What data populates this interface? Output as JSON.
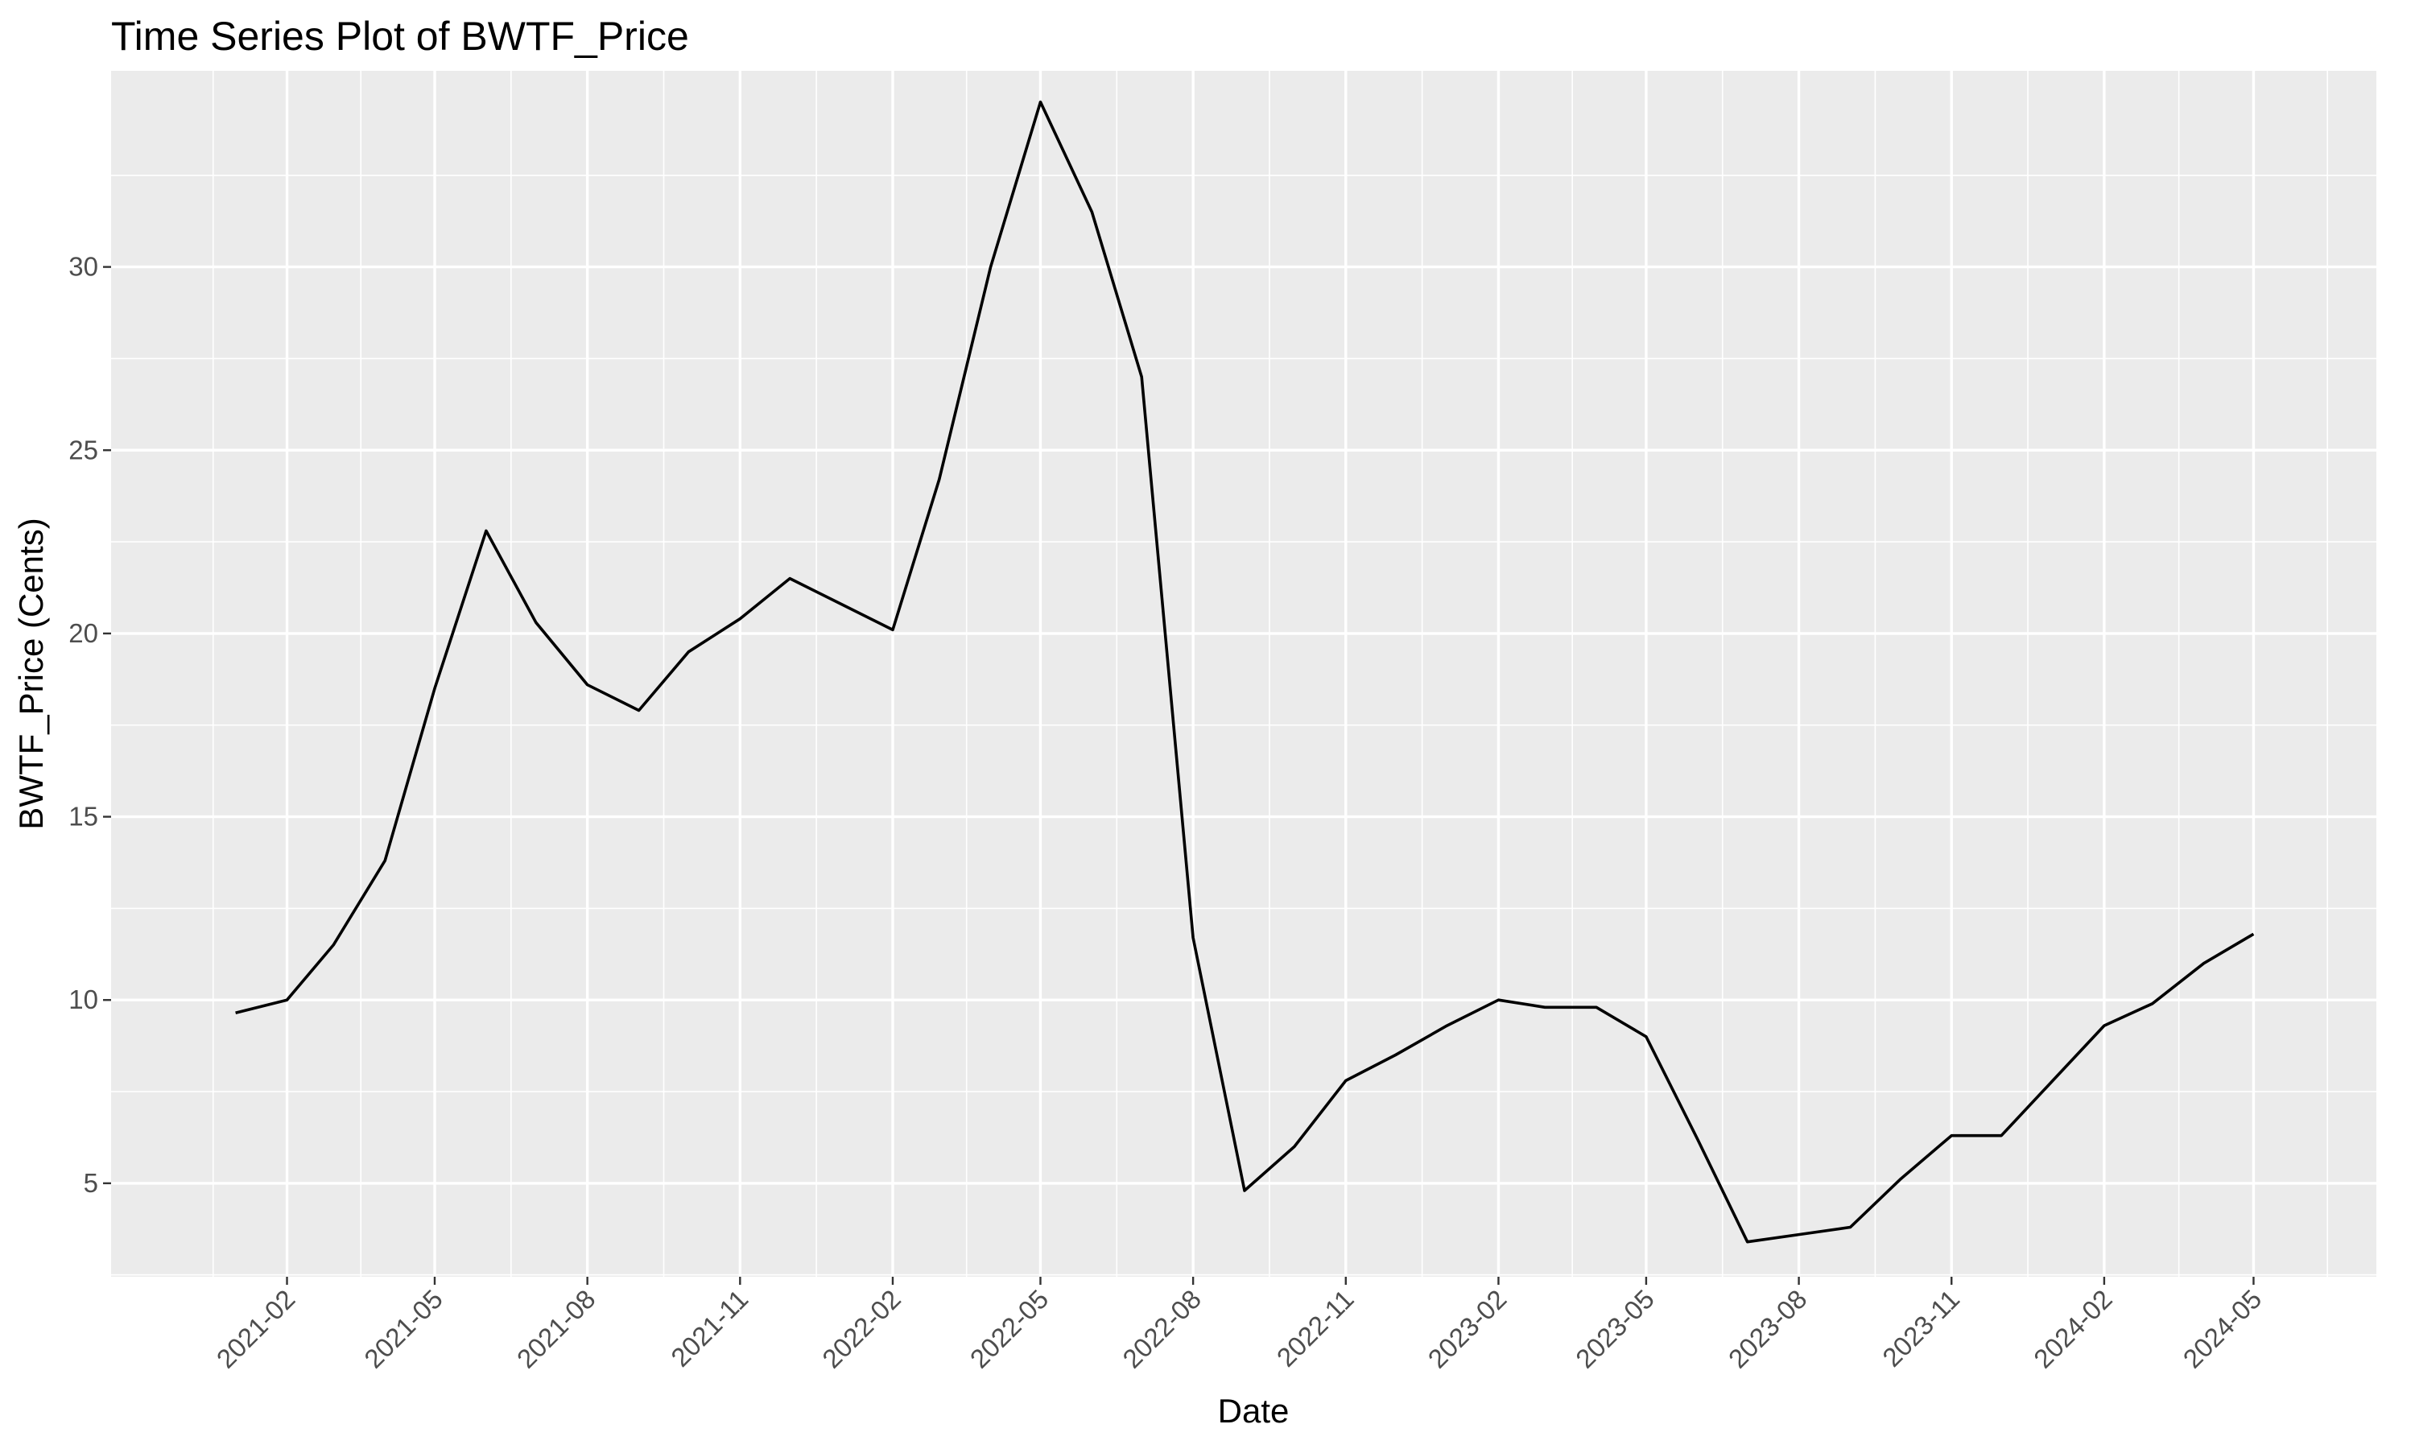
{
  "chart_data": {
    "type": "line",
    "title": "Time Series Plot of BWTF_Price",
    "xlabel": "Date",
    "ylabel": "BWTF_Price (Cents)",
    "x_ticks": [
      "2021-02",
      "2021-05",
      "2021-08",
      "2021-11",
      "2022-02",
      "2022-05",
      "2022-08",
      "2022-11",
      "2023-02",
      "2023-05",
      "2023-08",
      "2023-11",
      "2024-02",
      "2024-05"
    ],
    "y_ticks": [
      5,
      10,
      15,
      20,
      25,
      30
    ],
    "x_range": [
      "2020-10-18",
      "2024-07-14"
    ],
    "ylim": [
      2.45,
      35.35
    ],
    "grid": true,
    "colors": {
      "panel": "#ebebeb",
      "grid": "#ffffff",
      "line": "#000000",
      "tick": "#4d4d4d",
      "tick_mark": "#333333"
    },
    "series": [
      {
        "x": [
          "2021-01-01",
          "2021-02-01",
          "2021-03-01",
          "2021-04-01",
          "2021-05-01",
          "2021-06-01",
          "2021-07-01",
          "2021-08-01",
          "2021-09-01",
          "2021-10-01",
          "2021-11-01",
          "2021-12-01",
          "2022-01-01",
          "2022-02-01",
          "2022-03-01",
          "2022-04-01",
          "2022-05-01",
          "2022-06-01",
          "2022-07-01",
          "2022-08-01",
          "2022-09-01",
          "2022-10-01",
          "2022-11-01",
          "2022-12-01",
          "2023-01-01",
          "2023-02-01",
          "2023-03-01",
          "2023-04-01",
          "2023-05-01",
          "2023-06-01",
          "2023-07-01",
          "2023-08-01",
          "2023-09-01",
          "2023-10-01",
          "2023-11-01",
          "2023-12-01",
          "2024-01-01",
          "2024-02-01",
          "2024-03-01",
          "2024-04-01",
          "2024-05-01"
        ],
        "values": [
          9.65,
          10.0,
          11.5,
          13.8,
          18.5,
          22.8,
          20.3,
          18.6,
          17.9,
          19.5,
          20.4,
          21.5,
          20.8,
          20.1,
          24.2,
          30.0,
          34.5,
          31.5,
          27.0,
          11.7,
          4.8,
          6.0,
          7.8,
          8.5,
          9.3,
          10.0,
          9.8,
          9.8,
          9.0,
          6.2,
          3.4,
          3.6,
          3.8,
          5.1,
          6.3,
          6.3,
          7.8,
          9.3,
          9.9,
          11.0,
          11.8
        ]
      }
    ]
  }
}
